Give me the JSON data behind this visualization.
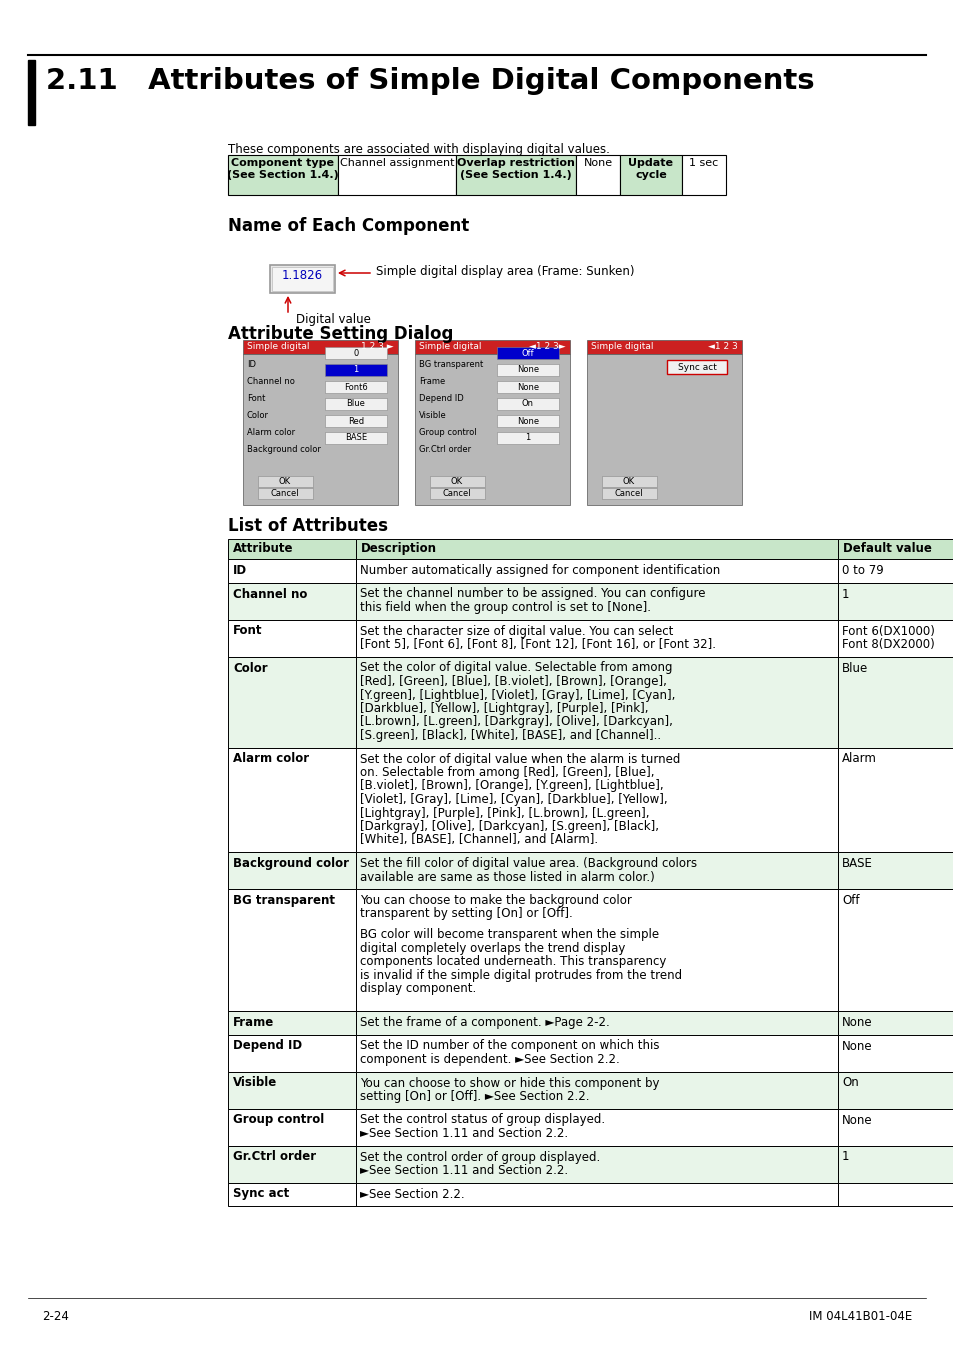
{
  "title": "2.11   Attributes of Simple Digital Components",
  "bg_color": "#ffffff",
  "page_num": "2-24",
  "page_ref": "IM 04L41B01-04E",
  "section_intro": "These components are associated with displaying digital values.",
  "name_section_title": "Name of Each Component",
  "attr_dialog_title": "Attribute Setting Dialog",
  "list_attr_title": "List of Attributes",
  "table_header": [
    "Attribute",
    "Description",
    "Default value"
  ],
  "table_rows": [
    {
      "attr": "ID",
      "desc": "Number automatically assigned for component identification",
      "default": "0 to 79",
      "green": false,
      "desc_lines": 1,
      "def_lines": 1
    },
    {
      "attr": "Channel no",
      "desc": "Set the channel number to be assigned. You can configure\nthis field when the group control is set to [None].",
      "default": "1",
      "green": true,
      "desc_lines": 2,
      "def_lines": 1
    },
    {
      "attr": "Font",
      "desc": "Set the character size of digital value. You can select\n[Font 5], [Font 6], [Font 8], [Font 12], [Font 16], or [Font 32].",
      "default": "Font 6(DX1000)\nFont 8(DX2000)",
      "green": false,
      "desc_lines": 2,
      "def_lines": 2
    },
    {
      "attr": "Color",
      "desc": "Set the color of digital value. Selectable from among\n[Red], [Green], [Blue], [B.violet], [Brown], [Orange],\n[Y.green], [Lightblue], [Violet], [Gray], [Lime], [Cyan],\n[Darkblue], [Yellow], [Lightgray], [Purple], [Pink],\n[L.brown], [L.green], [Darkgray], [Olive], [Darkcyan],\n[S.green], [Black], [White], [BASE], and [Channel]..",
      "default": "Blue",
      "green": true,
      "desc_lines": 6,
      "def_lines": 1
    },
    {
      "attr": "Alarm color",
      "desc": "Set the color of digital value when the alarm is turned\non. Selectable from among [Red], [Green], [Blue],\n[B.violet], [Brown], [Orange], [Y.green], [Lightblue],\n[Violet], [Gray], [Lime], [Cyan], [Darkblue], [Yellow],\n[Lightgray], [Purple], [Pink], [L.brown], [L.green],\n[Darkgray], [Olive], [Darkcyan], [S.green], [Black],\n[White], [BASE], [Channel], and [Alarm].",
      "default": "Alarm",
      "green": false,
      "desc_lines": 7,
      "def_lines": 1
    },
    {
      "attr": "Background color",
      "desc": "Set the fill color of digital value area. (Background colors\navailable are same as those listed in alarm color.)",
      "default": "BASE",
      "green": true,
      "desc_lines": 2,
      "def_lines": 1
    },
    {
      "attr": "BG transparent",
      "desc": "You can choose to make the background color\ntransparent by setting [On] or [Off].\n\nBG color will become transparent when the simple\ndigital completely overlaps the trend display\ncomponents located underneath. This transparency\nis invalid if the simple digital protrudes from the trend\ndisplay component.",
      "default": "Off",
      "green": false,
      "desc_lines": 8,
      "def_lines": 1
    },
    {
      "attr": "Frame",
      "desc": "Set the frame of a component. ►Page 2-2.",
      "default": "None",
      "green": true,
      "desc_lines": 1,
      "def_lines": 1
    },
    {
      "attr": "Depend ID",
      "desc": "Set the ID number of the component on which this\ncomponent is dependent. ►See Section 2.2.",
      "default": "None",
      "green": false,
      "desc_lines": 2,
      "def_lines": 1
    },
    {
      "attr": "Visible",
      "desc": "You can choose to show or hide this component by\nsetting [On] or [Off]. ►See Section 2.2.",
      "default": "On",
      "green": true,
      "desc_lines": 2,
      "def_lines": 1
    },
    {
      "attr": "Group control",
      "desc": "Set the control status of group displayed.\n►See Section 1.11 and Section 2.2.",
      "default": "None",
      "green": false,
      "desc_lines": 2,
      "def_lines": 1
    },
    {
      "attr": "Gr.Ctrl order",
      "desc": "Set the control order of group displayed.\n►See Section 1.11 and Section 2.2.",
      "default": "1",
      "green": true,
      "desc_lines": 2,
      "def_lines": 1
    },
    {
      "attr": "Sync act",
      "desc": "►See Section 2.2.",
      "default": "",
      "green": false,
      "desc_lines": 1,
      "def_lines": 1
    }
  ],
  "green_header": "#c8e6c9",
  "green_row": "#e8f5e9",
  "white_row": "#ffffff",
  "dialog_bg": "#b8b8b8",
  "dialog_titlebar": "#cc2020"
}
